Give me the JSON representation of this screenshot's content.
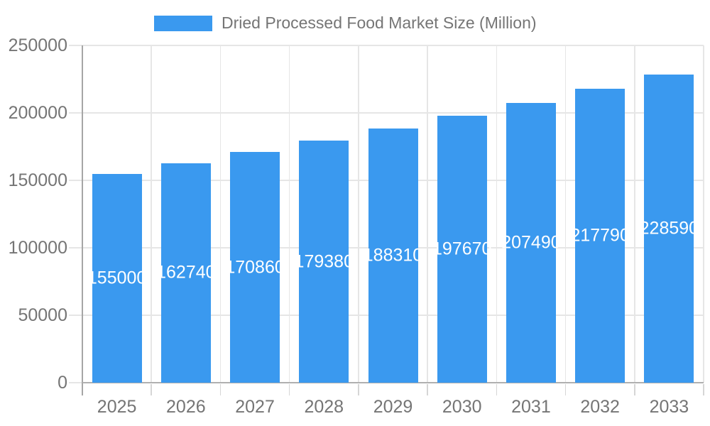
{
  "chart_data": {
    "type": "bar",
    "title": "Dried Processed Food Market Size (Million)",
    "categories": [
      "2025",
      "2026",
      "2027",
      "2028",
      "2029",
      "2030",
      "2031",
      "2032",
      "2033"
    ],
    "values": [
      155000,
      162740,
      170860,
      179380,
      188310,
      197670,
      207490,
      217790,
      228590
    ],
    "series": [
      {
        "name": "Dried Processed Food Market Size (Million)",
        "values": [
          155000,
          162740,
          170860,
          179380,
          188310,
          197670,
          207490,
          217790,
          228590
        ]
      }
    ],
    "xlabel": "",
    "ylabel": "",
    "ylim": [
      0,
      250000
    ],
    "yticks": [
      0,
      50000,
      100000,
      150000,
      200000,
      250000
    ],
    "grid": "horizontal gridlines at each y tick and vertical gridlines at category boundaries",
    "legend_position": "top-center",
    "value_labels": "white numbers centered vertically inside each bar",
    "colors": {
      "bar": "#3A99EF",
      "bar_value_text": "#FFFFFF",
      "axis_text": "#757575",
      "legend_text": "#757575",
      "gridline": "#E6E6E6",
      "axis_line": "#B0B0B0",
      "yaxis_line": "#A6A6A6",
      "minor_tick": "#D6D6D6",
      "background": "#FFFFFF"
    }
  }
}
